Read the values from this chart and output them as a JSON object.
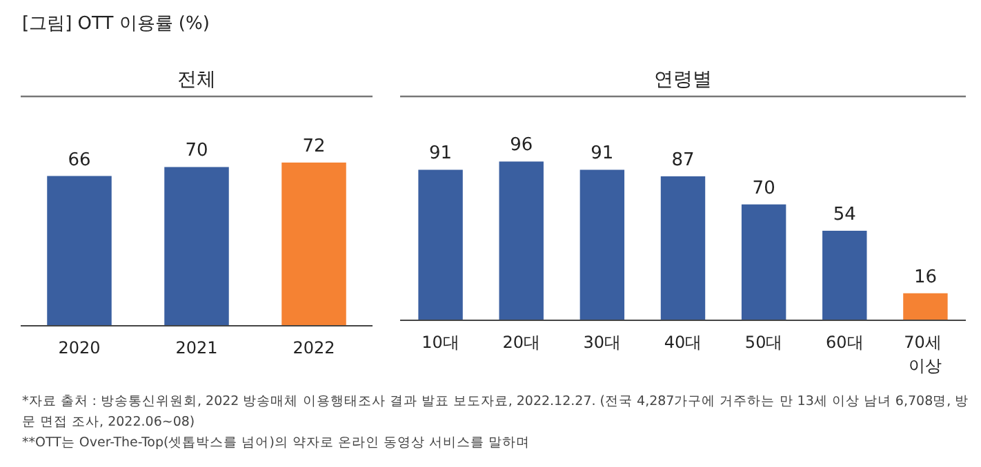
{
  "chart_data": [
    {
      "type": "bar",
      "title": "[그림] OTT 이용률 (%)",
      "subtitle": "전체",
      "categories": [
        "2020",
        "2021",
        "2022"
      ],
      "values": [
        66,
        70,
        72
      ],
      "colors": [
        "#3a5fa0",
        "#3a5fa0",
        "#f58233"
      ],
      "data_labels": true,
      "tick_labels": "x"
    },
    {
      "type": "bar",
      "subtitle": "연령별",
      "categories": [
        "10대",
        "20대",
        "30대",
        "40대",
        "50대",
        "60대",
        "70세 이상"
      ],
      "values": [
        91,
        96,
        91,
        87,
        70,
        54,
        16
      ],
      "colors": [
        "#3a5fa0",
        "#3a5fa0",
        "#3a5fa0",
        "#3a5fa0",
        "#3a5fa0",
        "#3a5fa0",
        "#f58233"
      ],
      "data_labels": true,
      "tick_labels": "x",
      "annotations": [
        "*자료 출처 : 방송통신위원회, 2022 방송매체 이용행태조사 결과 발표 보도자료, 2022.12.27. (전국 4,287가구에 거주하는 만 13세 이상 남녀 6,708명, 방문 면접 조사, 2022.06~08)",
        "**OTT는 Over-The-Top(셋톱박스를 넘어)의 약자로 온라인 동영상 서비스를 말하며"
      ]
    }
  ]
}
